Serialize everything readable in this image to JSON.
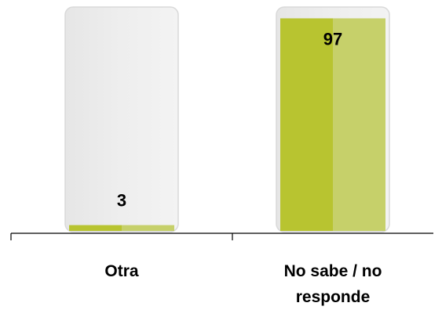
{
  "chart_data": {
    "type": "bar",
    "categories": [
      "Otra",
      "No sabe / no responde"
    ],
    "category_lines": [
      [
        "Otra"
      ],
      [
        "No sabe / no",
        "responde"
      ]
    ],
    "values": [
      3,
      97
    ],
    "data_labels": [
      "3",
      "97"
    ],
    "ylim": [
      0,
      100
    ],
    "grid": false,
    "legend": "none",
    "colors": {
      "bar_fill_left": "#b8c430",
      "bar_fill_right": "#c6d06a",
      "track_fill": "#ececec",
      "track_border": "#d9d9d9",
      "axis": "#000000"
    }
  }
}
